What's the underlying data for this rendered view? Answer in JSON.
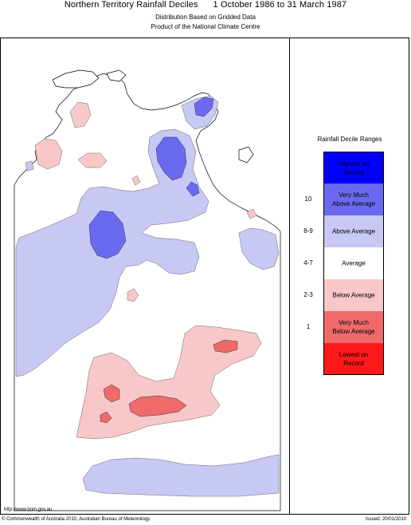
{
  "header": {
    "title": "Northern Territory Rainfall Deciles      1 October 1986 to 31 March 1987",
    "subtitle1": "Distribution Based on Gridded Data",
    "subtitle2": "Product of the National Climate Centre"
  },
  "legend": {
    "title": "Rainfall Decile Ranges",
    "items": [
      {
        "label": "Highest on\nRecord",
        "range": "",
        "color": "#0000ff"
      },
      {
        "label": "Very Much\nAbove Average",
        "range": "10",
        "color": "#6a6af0"
      },
      {
        "label": "Above Average",
        "range": "8-9",
        "color": "#c8c8f5"
      },
      {
        "label": "Average",
        "range": "4-7",
        "color": "#ffffff"
      },
      {
        "label": "Below Average",
        "range": "2-3",
        "color": "#f8c8c8"
      },
      {
        "label": "Very Much\nBelow Average",
        "range": "1",
        "color": "#f06a6a"
      },
      {
        "label": "Lowest on\nRecord",
        "range": "",
        "color": "#ff1a1a"
      }
    ]
  },
  "footer": {
    "url": "http://www.bom.gov.au",
    "copyright": "© Commonwealth of Australia 2010, Australian Bureau of Meteorology",
    "issued": "Issued: 20/01/2010"
  }
}
